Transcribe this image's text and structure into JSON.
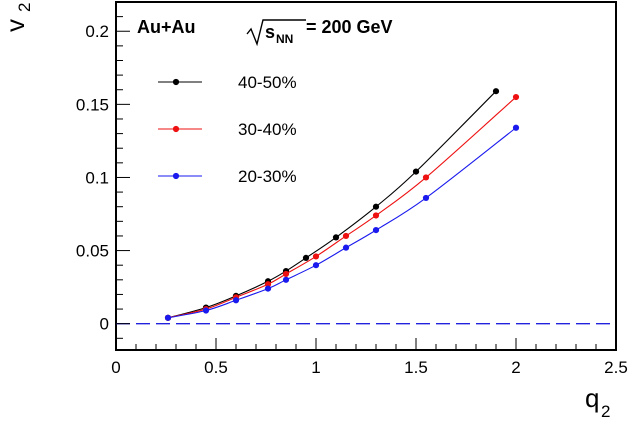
{
  "chart_data": {
    "type": "line",
    "title": {
      "system": "Au+Au",
      "energy_var": "s",
      "energy_sub": "NN",
      "energy_value": "= 200 GeV"
    },
    "xlabel": "q",
    "xlabel_sub": "2",
    "ylabel": "v",
    "ylabel_sub": "2",
    "xlim": [
      0,
      2.5
    ],
    "ylim": [
      -0.018,
      0.22
    ],
    "x_ticks": [
      {
        "value": 0,
        "label": "0"
      },
      {
        "value": 0.5,
        "label": "0.5"
      },
      {
        "value": 1,
        "label": "1"
      },
      {
        "value": 1.5,
        "label": "1.5"
      },
      {
        "value": 2,
        "label": "2"
      },
      {
        "value": 2.5,
        "label": "2.5"
      }
    ],
    "y_ticks": [
      {
        "value": 0,
        "label": "0"
      },
      {
        "value": 0.05,
        "label": "0.05"
      },
      {
        "value": 0.1,
        "label": "0.1"
      },
      {
        "value": 0.15,
        "label": "0.15"
      },
      {
        "value": 0.2,
        "label": "0.2"
      }
    ],
    "reference_line": {
      "y": 0,
      "style": "dashed",
      "color": "#2222dd"
    },
    "legend_position": "upper-left",
    "series": [
      {
        "name": "40-50%",
        "color": "#000000",
        "x": [
          0.26,
          0.45,
          0.6,
          0.76,
          0.85,
          0.95,
          1.1,
          1.3,
          1.5,
          1.9
        ],
        "y": [
          0.004,
          0.011,
          0.019,
          0.029,
          0.036,
          0.045,
          0.059,
          0.08,
          0.104,
          0.159
        ]
      },
      {
        "name": "30-40%",
        "color": "#ee1111",
        "x": [
          0.26,
          0.45,
          0.6,
          0.76,
          0.85,
          1.0,
          1.15,
          1.3,
          1.55,
          2.0
        ],
        "y": [
          0.004,
          0.01,
          0.018,
          0.027,
          0.034,
          0.046,
          0.06,
          0.074,
          0.1,
          0.155
        ]
      },
      {
        "name": "20-30%",
        "color": "#1a1aee",
        "x": [
          0.26,
          0.45,
          0.6,
          0.76,
          0.85,
          1.0,
          1.15,
          1.3,
          1.55,
          2.0
        ],
        "y": [
          0.004,
          0.009,
          0.016,
          0.024,
          0.03,
          0.04,
          0.052,
          0.064,
          0.086,
          0.134
        ]
      }
    ]
  }
}
